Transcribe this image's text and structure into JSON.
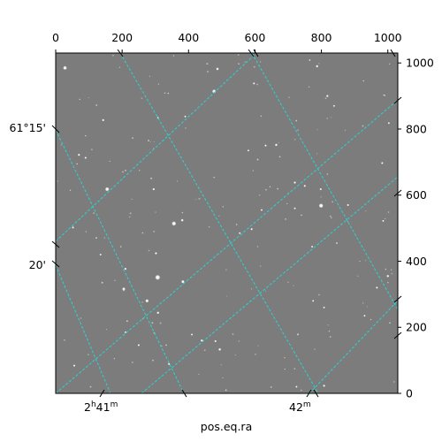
{
  "chart_data": {
    "type": "scatter",
    "description_source": "astronomical image with WCS coordinate grid overlay",
    "xlabel": "pos.eq.ra",
    "ylabel": "",
    "pixel_axis_top": {
      "ticks": [
        "0",
        "200",
        "400",
        "600",
        "800",
        "1000"
      ],
      "values": [
        0,
        200,
        400,
        600,
        800,
        1000
      ],
      "range": [
        0,
        1030
      ]
    },
    "pixel_axis_right": {
      "ticks": [
        "0",
        "200",
        "400",
        "600",
        "800",
        "1000"
      ],
      "values": [
        0,
        200,
        400,
        600,
        800,
        1000
      ],
      "range": [
        0,
        1030
      ]
    },
    "ra_ticks": [
      {
        "label_main": "2",
        "label_h": "h",
        "label_rest": "41",
        "label_m": "m"
      },
      {
        "label_main": "42",
        "label_m": "m"
      }
    ],
    "dec_ticks": [
      "61°15'",
      "20'"
    ],
    "grid_color": "#2ad4d4",
    "image_background": "#7b7b7b",
    "stars": [
      {
        "x": 28,
        "y": 985,
        "b": 2.3
      },
      {
        "x": 487,
        "y": 982,
        "b": 1.6
      },
      {
        "x": 787,
        "y": 990,
        "b": 1.5
      },
      {
        "x": 477,
        "y": 914,
        "b": 2.3
      },
      {
        "x": 597,
        "y": 938,
        "b": 1.3
      },
      {
        "x": 390,
        "y": 838,
        "b": 1.2
      },
      {
        "x": 143,
        "y": 827,
        "b": 1.4
      },
      {
        "x": 308,
        "y": 834,
        "b": 1.2
      },
      {
        "x": 818,
        "y": 900,
        "b": 1.4
      },
      {
        "x": 838,
        "y": 870,
        "b": 1.2
      },
      {
        "x": 632,
        "y": 750,
        "b": 1.3
      },
      {
        "x": 664,
        "y": 752,
        "b": 1.5
      },
      {
        "x": 70,
        "y": 722,
        "b": 1.4
      },
      {
        "x": 90,
        "y": 713,
        "b": 1.3
      },
      {
        "x": 155,
        "y": 618,
        "b": 2.4
      },
      {
        "x": 295,
        "y": 618,
        "b": 1.4
      },
      {
        "x": 720,
        "y": 638,
        "b": 1.4
      },
      {
        "x": 750,
        "y": 628,
        "b": 1.3
      },
      {
        "x": 798,
        "y": 618,
        "b": 1.3
      },
      {
        "x": 880,
        "y": 570,
        "b": 1.3
      },
      {
        "x": 1003,
        "y": 818,
        "b": 1.2
      },
      {
        "x": 983,
        "y": 697,
        "b": 1.3
      },
      {
        "x": 799,
        "y": 568,
        "b": 2.6
      },
      {
        "x": 381,
        "y": 524,
        "b": 1.6
      },
      {
        "x": 356,
        "y": 514,
        "b": 2.6
      },
      {
        "x": 620,
        "y": 555,
        "b": 1.2
      },
      {
        "x": 590,
        "y": 497,
        "b": 1.3
      },
      {
        "x": 554,
        "y": 485,
        "b": 1.2
      },
      {
        "x": 52,
        "y": 502,
        "b": 1.3
      },
      {
        "x": 986,
        "y": 522,
        "b": 1.2
      },
      {
        "x": 302,
        "y": 424,
        "b": 1.4
      },
      {
        "x": 772,
        "y": 444,
        "b": 1.2
      },
      {
        "x": 210,
        "y": 377,
        "b": 1.4
      },
      {
        "x": 307,
        "y": 351,
        "b": 3.0
      },
      {
        "x": 383,
        "y": 338,
        "b": 1.9
      },
      {
        "x": 205,
        "y": 316,
        "b": 1.9
      },
      {
        "x": 275,
        "y": 280,
        "b": 2.0
      },
      {
        "x": 308,
        "y": 244,
        "b": 1.5
      },
      {
        "x": 1000,
        "y": 355,
        "b": 1.5
      },
      {
        "x": 967,
        "y": 320,
        "b": 1.3
      },
      {
        "x": 775,
        "y": 280,
        "b": 1.2
      },
      {
        "x": 808,
        "y": 260,
        "b": 1.2
      },
      {
        "x": 250,
        "y": 146,
        "b": 1.3
      },
      {
        "x": 440,
        "y": 160,
        "b": 1.5
      },
      {
        "x": 481,
        "y": 158,
        "b": 1.3
      },
      {
        "x": 494,
        "y": 133,
        "b": 1.6
      },
      {
        "x": 341,
        "y": 89,
        "b": 1.3
      },
      {
        "x": 56,
        "y": 84,
        "b": 1.3
      },
      {
        "x": 808,
        "y": 23,
        "b": 1.4
      },
      {
        "x": 725,
        "y": 20,
        "b": 1.2
      },
      {
        "x": 930,
        "y": 235,
        "b": 1.2
      },
      {
        "x": 580,
        "y": 735,
        "b": 1.2
      },
      {
        "x": 720,
        "y": 560,
        "b": 1.2
      },
      {
        "x": 210,
        "y": 185,
        "b": 1.2
      },
      {
        "x": 410,
        "y": 178,
        "b": 1.2
      },
      {
        "x": 135,
        "y": 420,
        "b": 1.2
      }
    ]
  }
}
